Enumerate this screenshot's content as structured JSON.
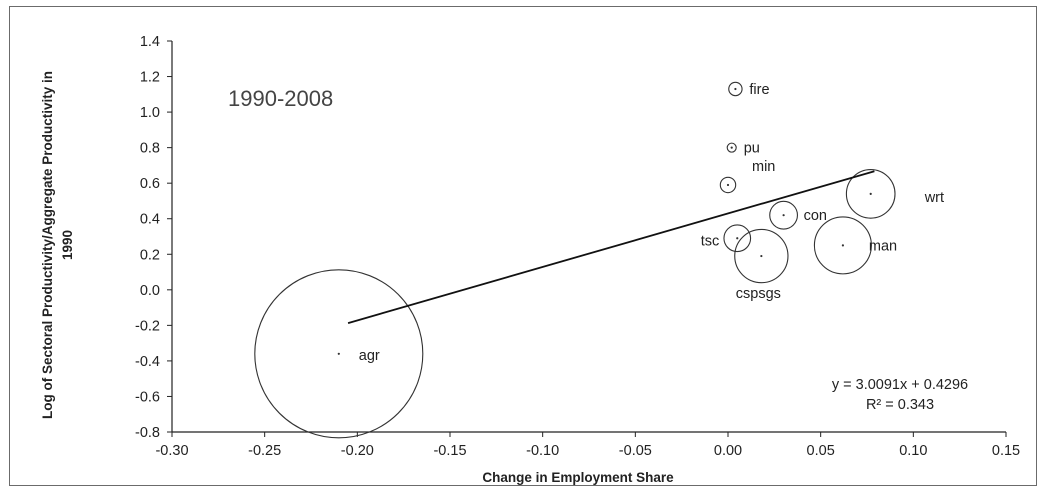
{
  "chart_data": {
    "type": "scatter",
    "variant": "bubble",
    "annotation_period": "1990-2008",
    "xlabel": "Change in Employment Share",
    "ylabel_line1": "Log of Sectoral Productivity/Aggregate Productivity in",
    "ylabel_line2": "1990",
    "xlim": [
      -0.3,
      0.15
    ],
    "ylim": [
      -0.8,
      1.4
    ],
    "x_ticks": [
      "-0.30",
      "-0.25",
      "-0.20",
      "-0.15",
      "-0.10",
      "-0.05",
      "0.00",
      "0.05",
      "0.10",
      "0.15"
    ],
    "y_ticks": [
      "1.4",
      "1.2",
      "1.0",
      "0.8",
      "0.6",
      "0.4",
      "0.2",
      "0.0",
      "-0.2",
      "-0.4",
      "-0.6",
      "-0.8"
    ],
    "grid": false,
    "points": [
      {
        "label": "agr",
        "x": -0.21,
        "y": -0.36,
        "size": 0.478
      },
      {
        "label": "fire",
        "x": 0.004,
        "y": 1.13,
        "size": 0.003
      },
      {
        "label": "pu",
        "x": 0.002,
        "y": 0.8,
        "size": 0.001
      },
      {
        "label": "min",
        "x": 0.0,
        "y": 0.59,
        "size": 0.004
      },
      {
        "label": "wrt",
        "x": 0.077,
        "y": 0.54,
        "size": 0.04
      },
      {
        "label": "con",
        "x": 0.03,
        "y": 0.42,
        "size": 0.013
      },
      {
        "label": "tsc",
        "x": 0.005,
        "y": 0.29,
        "size": 0.012
      },
      {
        "label": "man",
        "x": 0.062,
        "y": 0.25,
        "size": 0.055
      },
      {
        "label": "cspsgs",
        "x": 0.018,
        "y": 0.19,
        "size": 0.048
      }
    ],
    "trendline": {
      "slope": 3.0091,
      "intercept": 0.4296,
      "x_start": -0.205,
      "x_end": 0.079,
      "equation": "y = 3.0091x + 0.4296",
      "r_squared": "R² = 0.343"
    },
    "colors": {
      "marks": "#333333",
      "axis": "#222222",
      "frame": "#6b6b6b"
    }
  }
}
